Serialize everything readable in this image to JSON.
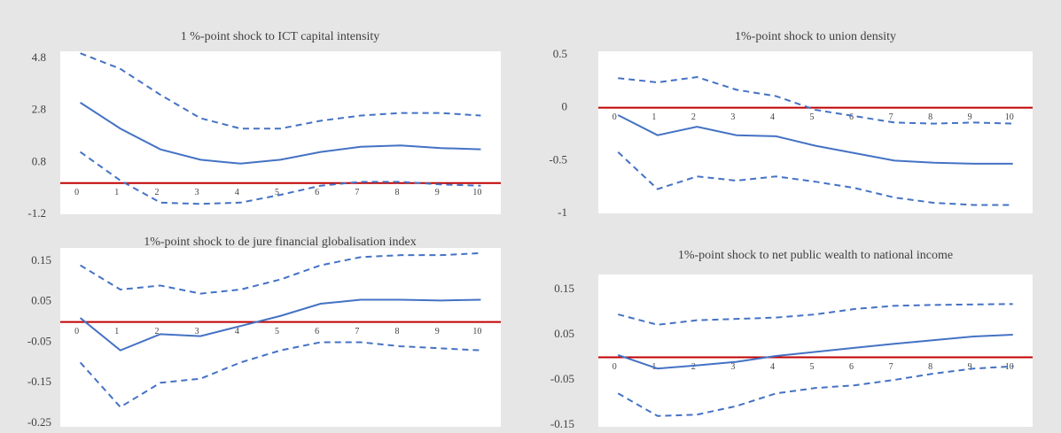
{
  "chart_data": [
    {
      "type": "line",
      "title": "1 %-point shock to ICT capital intensity",
      "categories": [
        "0",
        "1",
        "2",
        "3",
        "4",
        "5",
        "6",
        "7",
        "8",
        "9",
        "10"
      ],
      "ylim": [
        -1.2,
        4.8
      ],
      "yticks": [
        -1.2,
        0.8,
        2.8,
        4.8
      ],
      "zero_line_color": "#c00000",
      "series": [
        {
          "color": "#4472c4",
          "dashed": false,
          "values": [
            3.1,
            2.1,
            1.3,
            0.9,
            0.75,
            0.9,
            1.2,
            1.4,
            1.45,
            1.35,
            1.3
          ]
        },
        {
          "color": "#4472c4",
          "dashed": true,
          "values": [
            5.0,
            4.4,
            3.4,
            2.5,
            2.1,
            2.1,
            2.4,
            2.6,
            2.7,
            2.7,
            2.6
          ]
        },
        {
          "color": "#4472c4",
          "dashed": true,
          "values": [
            1.2,
            0.1,
            -0.75,
            -0.8,
            -0.75,
            -0.45,
            -0.1,
            0.05,
            0.05,
            -0.05,
            -0.1
          ]
        }
      ]
    },
    {
      "type": "line",
      "title": "1%-point shock to union density",
      "categories": [
        "0",
        "1",
        "2",
        "3",
        "4",
        "5",
        "6",
        "7",
        "8",
        "9",
        "10"
      ],
      "ylim": [
        -1,
        0.5
      ],
      "yticks": [
        -1,
        -0.5,
        0,
        0.5
      ],
      "zero_line_color": "#c00000",
      "series": [
        {
          "color": "#4472c4",
          "dashed": false,
          "values": [
            -0.07,
            -0.26,
            -0.18,
            -0.26,
            -0.27,
            -0.36,
            -0.43,
            -0.5,
            -0.52,
            -0.53,
            -0.53
          ]
        },
        {
          "color": "#4472c4",
          "dashed": true,
          "values": [
            0.28,
            0.24,
            0.29,
            0.17,
            0.11,
            -0.02,
            -0.08,
            -0.14,
            -0.15,
            -0.14,
            -0.15
          ]
        },
        {
          "color": "#4472c4",
          "dashed": true,
          "values": [
            -0.42,
            -0.77,
            -0.65,
            -0.69,
            -0.65,
            -0.7,
            -0.76,
            -0.85,
            -0.9,
            -0.92,
            -0.92
          ]
        }
      ]
    },
    {
      "type": "line",
      "title": "1%-point shock to de jure financial globalisation index",
      "categories": [
        "0",
        "1",
        "2",
        "3",
        "4",
        "5",
        "6",
        "7",
        "8",
        "9",
        "10"
      ],
      "ylim": [
        -0.25,
        0.15
      ],
      "yticks": [
        -0.25,
        -0.15,
        -0.05,
        0.05,
        0.15
      ],
      "zero_line_color": "#c00000",
      "series": [
        {
          "color": "#4472c4",
          "dashed": false,
          "values": [
            0.01,
            -0.07,
            -0.03,
            -0.035,
            -0.01,
            0.015,
            0.045,
            0.055,
            0.055,
            0.053,
            0.055
          ]
        },
        {
          "color": "#4472c4",
          "dashed": true,
          "values": [
            0.14,
            0.08,
            0.09,
            0.07,
            0.08,
            0.105,
            0.14,
            0.16,
            0.165,
            0.165,
            0.17
          ]
        },
        {
          "color": "#4472c4",
          "dashed": true,
          "values": [
            -0.1,
            -0.21,
            -0.15,
            -0.14,
            -0.1,
            -0.07,
            -0.05,
            -0.05,
            -0.06,
            -0.065,
            -0.07
          ]
        }
      ]
    },
    {
      "type": "line",
      "title": "1%-point shock to net public wealth to national income",
      "categories": [
        "0",
        "1",
        "2",
        "3",
        "4",
        "5",
        "6",
        "7",
        "8",
        "9",
        "10"
      ],
      "ylim": [
        -0.15,
        0.15
      ],
      "yticks": [
        -0.15,
        -0.05,
        0.05,
        0.15
      ],
      "zero_line_color": "#c00000",
      "series": [
        {
          "color": "#4472c4",
          "dashed": false,
          "values": [
            0.005,
            -0.025,
            -0.018,
            -0.01,
            0.003,
            0.012,
            0.021,
            0.03,
            0.038,
            0.046,
            0.05
          ]
        },
        {
          "color": "#4472c4",
          "dashed": true,
          "values": [
            0.095,
            0.072,
            0.082,
            0.085,
            0.088,
            0.095,
            0.107,
            0.114,
            0.116,
            0.117,
            0.118
          ]
        },
        {
          "color": "#4472c4",
          "dashed": true,
          "values": [
            -0.08,
            -0.13,
            -0.127,
            -0.108,
            -0.08,
            -0.068,
            -0.062,
            -0.05,
            -0.036,
            -0.025,
            -0.02
          ]
        }
      ]
    }
  ]
}
